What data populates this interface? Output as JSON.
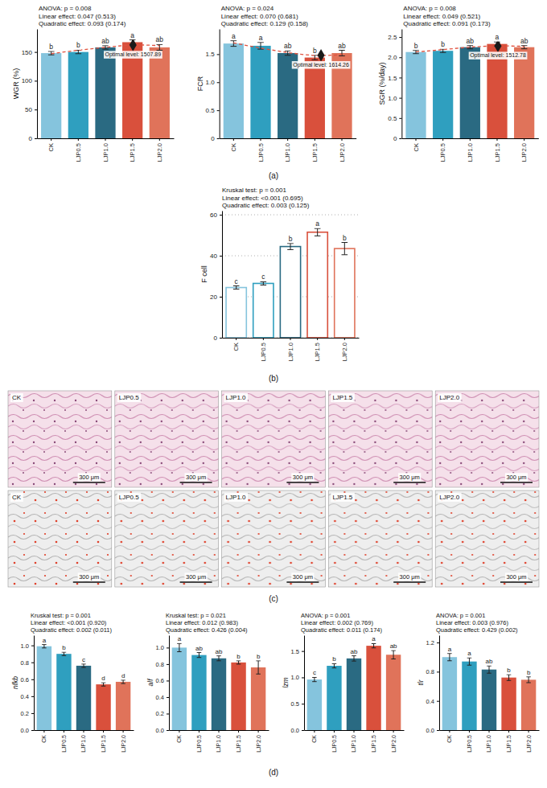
{
  "chart_data": [
    {
      "type": "bar",
      "ylabel": "WGR (%)",
      "stats": [
        "ANOVA: p = 0.008",
        "Linear effect: 0.047 (0.513)",
        "Quadratic effect: 0.093 (0.174)"
      ],
      "categories": [
        "CK",
        "LJP0.5",
        "LJP1.0",
        "LJP1.5",
        "LJP2.0"
      ],
      "values": [
        148,
        150,
        158,
        167,
        158
      ],
      "errors": [
        3,
        3,
        3,
        4,
        5
      ],
      "letters": [
        "b",
        "b",
        "ab",
        "a",
        "ab"
      ],
      "colors": [
        "#85c4dd",
        "#2f9fbf",
        "#2a6a82",
        "#d9503c",
        "#e0735a"
      ],
      "ylim": [
        0,
        190
      ],
      "yticks": [
        0,
        50,
        100,
        150
      ],
      "grid": false,
      "fit": {
        "values": [
          147,
          153,
          158,
          162,
          161
        ],
        "color": "#e0523f",
        "line_style": "dashed"
      },
      "optimum": {
        "position": 3.02,
        "value": 162,
        "label": "Optimal level: 1507.89",
        "marker": "diamond"
      }
    },
    {
      "type": "bar",
      "ylabel": "FCR",
      "stats": [
        "ANOVA: p = 0.024",
        "Linear effect: 0.070 (0.681)",
        "Quadratic effect: 0.129 (0.158)"
      ],
      "categories": [
        "CK",
        "LJP0.5",
        "LJP1.0",
        "LJP1.5",
        "LJP2.0"
      ],
      "values": [
        1.69,
        1.65,
        1.52,
        1.44,
        1.52
      ],
      "errors": [
        0.05,
        0.06,
        0.04,
        0.04,
        0.05
      ],
      "letters": [
        "a",
        "a",
        "ab",
        "b",
        "ab"
      ],
      "colors": [
        "#85c4dd",
        "#2f9fbf",
        "#2a6a82",
        "#d9503c",
        "#e0735a"
      ],
      "ylim": [
        0,
        1.95
      ],
      "yticks": [
        0,
        0.5,
        {
          "value": 1,
          "label": "1.0"
        },
        1.5
      ],
      "grid": false,
      "fit": {
        "values": [
          1.7,
          1.61,
          1.53,
          1.48,
          1.49
        ],
        "color": "#e0523f",
        "line_style": "dashed"
      },
      "optimum": {
        "position": 3.23,
        "value": 1.48,
        "label": "Optimal level: 1614.26",
        "marker": "diamond"
      }
    },
    {
      "type": "bar",
      "ylabel": "SGR (%/day)",
      "stats": [
        "ANOVA: p = 0.008",
        "Linear effect: 0.049 (0.521)",
        "Quadratic effect: 0.091 (0.173)"
      ],
      "categories": [
        "CK",
        "LJP0.5",
        "LJP1.0",
        "LJP1.5",
        "LJP2.0"
      ],
      "values": [
        2.13,
        2.16,
        2.25,
        2.33,
        2.25
      ],
      "errors": [
        0.04,
        0.04,
        0.04,
        0.05,
        0.04
      ],
      "letters": [
        "b",
        "b",
        "ab",
        "a",
        "ab"
      ],
      "colors": [
        "#85c4dd",
        "#2f9fbf",
        "#2a6a82",
        "#d9503c",
        "#e0735a"
      ],
      "ylim": [
        0,
        2.7
      ],
      "yticks": [
        0,
        0.5,
        {
          "value": 1,
          "label": "1.0"
        },
        1.5,
        {
          "value": 2,
          "label": "2.0"
        },
        2.5
      ],
      "grid": false,
      "fit": {
        "values": [
          2.13,
          2.19,
          2.25,
          2.28,
          2.27
        ],
        "color": "#e0523f",
        "line_style": "dashed"
      },
      "optimum": {
        "position": 3.03,
        "value": 2.28,
        "label": "Optimal level: 1512.78",
        "marker": "diamond"
      }
    },
    {
      "type": "hollowbar",
      "ylabel": "F cell",
      "stats": [
        "Kruskal test: p = 0.001",
        "Linear effect: <0.001 (0.695)",
        "Quadratic effect: 0.003 (0.125)"
      ],
      "categories": [
        "CK",
        "LJP0.5",
        "LJP1.0",
        "LJP1.5",
        "LJP2.0"
      ],
      "values": [
        24.5,
        26.5,
        44.5,
        51.5,
        43.5
      ],
      "errors": [
        0.8,
        0.8,
        1.5,
        1.8,
        3
      ],
      "letters": [
        "c",
        "c",
        "b",
        "a",
        "b"
      ],
      "colors": [
        "#85c4dd",
        "#2f9fbf",
        "#2a6a82",
        "#d9503c",
        "#e0735a"
      ],
      "ylim": [
        0,
        62
      ],
      "yticks": [
        0,
        20,
        40,
        60
      ],
      "grid": true
    },
    {
      "type": "bar",
      "ylabel": "nfkb",
      "stats": [
        "Kruskal test: p = 0.001",
        "Linear effect: <0.001 (0.920)",
        "Quadratic effect: 0.002 (0.011)"
      ],
      "categories": [
        "CK",
        "LJP0.5",
        "LJP1.0",
        "LJP1.5",
        "LJP2.0"
      ],
      "values": [
        0.99,
        0.9,
        0.76,
        0.54,
        0.57
      ],
      "errors": [
        0.02,
        0.02,
        0.02,
        0.02,
        0.02
      ],
      "letters": [
        "a",
        "b",
        "c",
        "d",
        "d"
      ],
      "colors": [
        "#85c4dd",
        "#2f9fbf",
        "#2a6a82",
        "#d9503c",
        "#e0735a"
      ],
      "ylim": [
        0,
        1.12
      ],
      "yticks": [
        {
          "value": 0,
          "label": "0.0"
        },
        0.2,
        0.4,
        0.6,
        0.8,
        {
          "value": 1,
          "label": "1.0"
        }
      ],
      "grid": false
    },
    {
      "type": "bar",
      "ylabel": "alf",
      "stats": [
        "Kruskal test: p = 0.021",
        "Linear effect: 0.012 (0.983)",
        "Quadratic effect: 0.426 (0.004)"
      ],
      "categories": [
        "CK",
        "LJP0.5",
        "LJP1.0",
        "LJP1.5",
        "LJP2.0"
      ],
      "values": [
        1.0,
        0.91,
        0.87,
        0.82,
        0.76
      ],
      "errors": [
        0.05,
        0.03,
        0.03,
        0.02,
        0.08
      ],
      "letters": [
        "a",
        "ab",
        "ab",
        "b",
        "b"
      ],
      "colors": [
        "#85c4dd",
        "#2f9fbf",
        "#2a6a82",
        "#d9503c",
        "#e0735a"
      ],
      "ylim": [
        0,
        1.15
      ],
      "yticks": [
        {
          "value": 0,
          "label": "0.0"
        },
        0.2,
        0.4,
        0.6,
        0.8,
        {
          "value": 1,
          "label": "1.0"
        }
      ],
      "grid": false
    },
    {
      "type": "bar",
      "ylabel": "lzm",
      "stats": [
        "ANOVA: p = 0.001",
        "Linear effect: 0.002 (0.769)",
        "Quadratic effect: 0.011 (0.174)"
      ],
      "categories": [
        "CK",
        "LJP0.5",
        "LJP1.0",
        "LJP1.5",
        "LJP2.0"
      ],
      "values": [
        0.96,
        1.22,
        1.36,
        1.6,
        1.43
      ],
      "errors": [
        0.04,
        0.04,
        0.05,
        0.04,
        0.08
      ],
      "letters": [
        "c",
        "b",
        "ab",
        "a",
        "ab"
      ],
      "colors": [
        "#85c4dd",
        "#2f9fbf",
        "#2a6a82",
        "#d9503c",
        "#e0735a"
      ],
      "ylim": [
        0,
        1.8
      ],
      "yticks": [
        {
          "value": 0,
          "label": "0.0"
        },
        0.5,
        {
          "value": 1,
          "label": "1.0"
        },
        1.5
      ],
      "grid": false
    },
    {
      "type": "bar",
      "ylabel": "tlr",
      "stats": [
        "ANOVA: p = 0.001",
        "Linear effect: 0.003 (0.976)",
        "Quadratic effect: 0.429 (0.002)"
      ],
      "categories": [
        "CK",
        "LJP0.5",
        "LJP1.0",
        "LJP1.5",
        "LJP2.0"
      ],
      "values": [
        1.0,
        0.94,
        0.83,
        0.72,
        0.69
      ],
      "errors": [
        0.05,
        0.05,
        0.05,
        0.04,
        0.04
      ],
      "letters": [
        "a",
        "a",
        "ab",
        "b",
        "b"
      ],
      "colors": [
        "#85c4dd",
        "#2f9fbf",
        "#2a6a82",
        "#d9503c",
        "#e0735a"
      ],
      "ylim": [
        0,
        1.3
      ],
      "yticks": [
        {
          "value": 0,
          "label": "0.0"
        },
        0.4,
        0.8,
        1.2
      ],
      "grid": false
    }
  ],
  "figure": {
    "panel_labels": [
      "(a)",
      "(b)",
      "(c)",
      "(d)"
    ],
    "histology": {
      "rows": [
        {
          "panels": [
            {
              "label": "CK",
              "scale_bar": "300 μm"
            },
            {
              "label": "LJP0.5",
              "scale_bar": "300 μm"
            },
            {
              "label": "LJP1.0",
              "scale_bar": "300 μm"
            },
            {
              "label": "LJP1.5",
              "scale_bar": "300 μm"
            },
            {
              "label": "LJP2.0",
              "scale_bar": "300 μm"
            }
          ]
        },
        {
          "panels": [
            {
              "label": "CK",
              "scale_bar": "300 μm"
            },
            {
              "label": "LJP0.5",
              "scale_bar": "300 μm"
            },
            {
              "label": "LJP1.0",
              "scale_bar": "300 μm"
            },
            {
              "label": "LJP1.5",
              "scale_bar": "300 μm"
            },
            {
              "label": "LJP2.0",
              "scale_bar": "300 μm"
            }
          ]
        }
      ]
    }
  }
}
